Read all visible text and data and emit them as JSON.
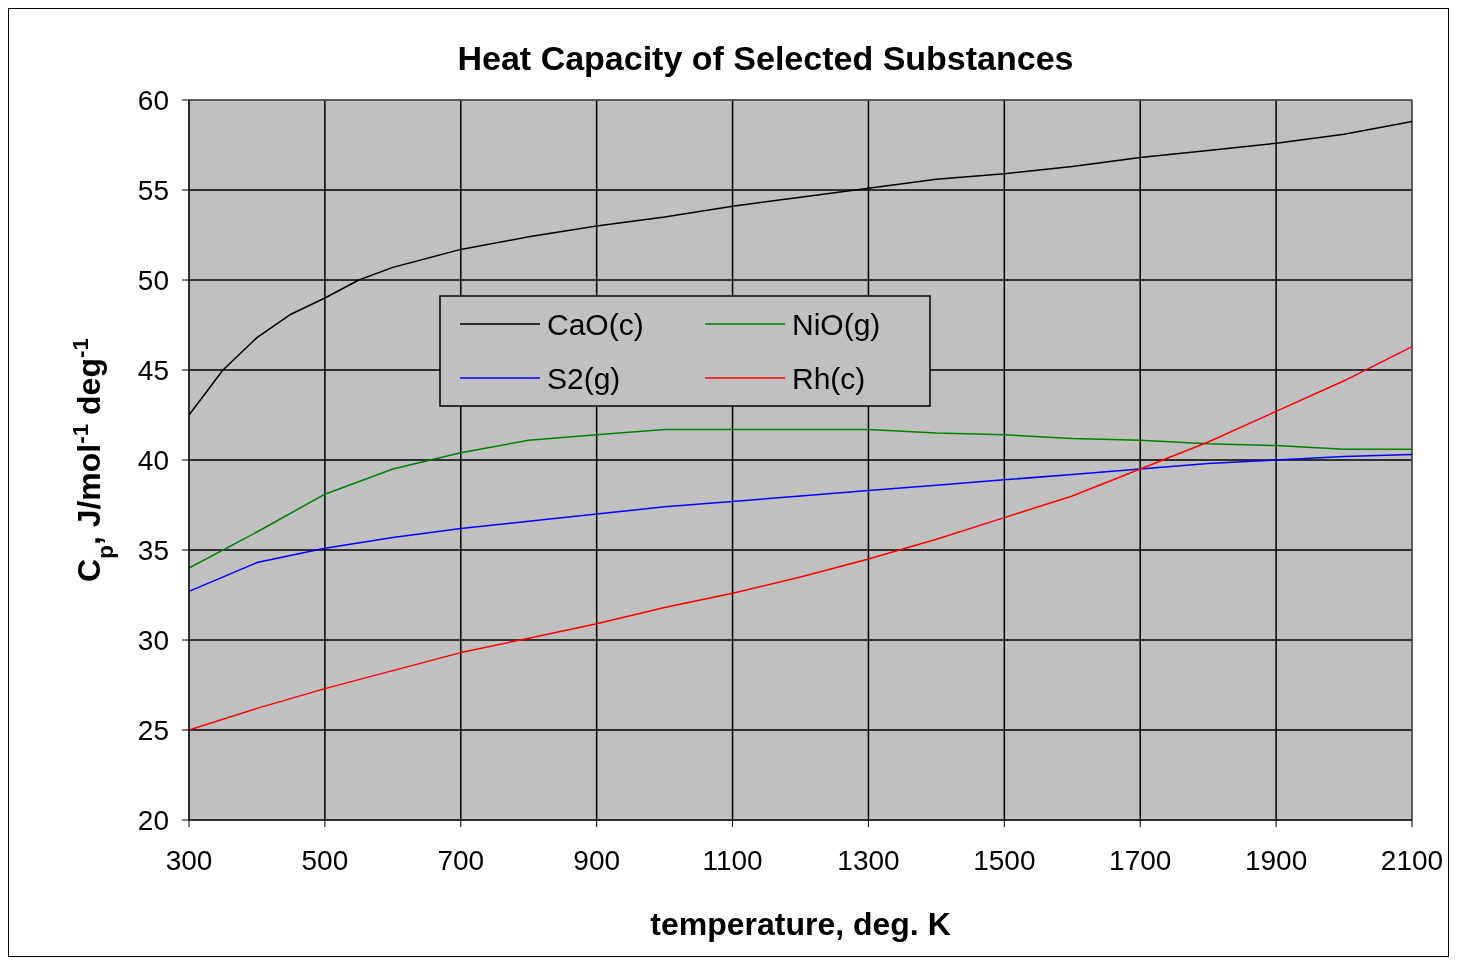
{
  "chart_data": {
    "type": "line",
    "title": "Heat Capacity of Selected Substances",
    "xlabel": "temperature, deg. K",
    "ylabel": "C$_{p}$, J/mol$^{-1}$ deg$^{-1}$",
    "x": [
      300,
      400,
      500,
      600,
      700,
      800,
      900,
      1000,
      1100,
      1200,
      1300,
      1400,
      1500,
      1600,
      1700,
      1800,
      1900,
      2000,
      2100
    ],
    "series": [
      {
        "name": "CaO(c)",
        "color": "#000000",
        "x": [
          300,
          350,
          400,
          450,
          500,
          550,
          600,
          700,
          800,
          900,
          1000,
          1100,
          1200,
          1300,
          1400,
          1500,
          1600,
          1700,
          1800,
          1900,
          2000,
          2100
        ],
        "values": [
          42.5,
          45,
          46.8,
          48.1,
          49,
          50,
          50.7,
          51.7,
          52.4,
          53,
          53.5,
          54.1,
          54.6,
          55.1,
          55.6,
          55.9,
          56.3,
          56.8,
          57.2,
          57.6,
          58.1,
          58.8
        ]
      },
      {
        "name": "NiO(g)",
        "color": "#008000",
        "values": [
          34,
          36,
          38.1,
          39.5,
          40.4,
          41.1,
          41.4,
          41.7,
          41.7,
          41.7,
          41.7,
          41.5,
          41.4,
          41.2,
          41.1,
          40.9,
          40.8,
          40.6,
          40.6
        ]
      },
      {
        "name": "S2(g)",
        "color": "#0000ff",
        "values": [
          32.7,
          34.3,
          35.1,
          35.7,
          36.2,
          36.6,
          37,
          37.4,
          37.7,
          38,
          38.3,
          38.6,
          38.9,
          39.2,
          39.5,
          39.8,
          40,
          40.2,
          40.3
        ]
      },
      {
        "name": "Rh(c)",
        "color": "#ff0000",
        "values": [
          25,
          26.2,
          27.3,
          28.3,
          29.3,
          30.1,
          30.9,
          31.8,
          32.6,
          33.5,
          34.5,
          35.6,
          36.8,
          38,
          39.5,
          41,
          42.7,
          44.4,
          46.3
        ]
      }
    ],
    "xlim": [
      300,
      2100
    ],
    "xticks": [
      300,
      500,
      700,
      900,
      1100,
      1300,
      1500,
      1700,
      1900,
      2100
    ],
    "ylim": [
      20,
      60
    ],
    "yticks": [
      20,
      25,
      30,
      35,
      40,
      45,
      50,
      55,
      60
    ],
    "grid": true,
    "legend": "top left",
    "marker": "none",
    "line_style": "solid"
  }
}
